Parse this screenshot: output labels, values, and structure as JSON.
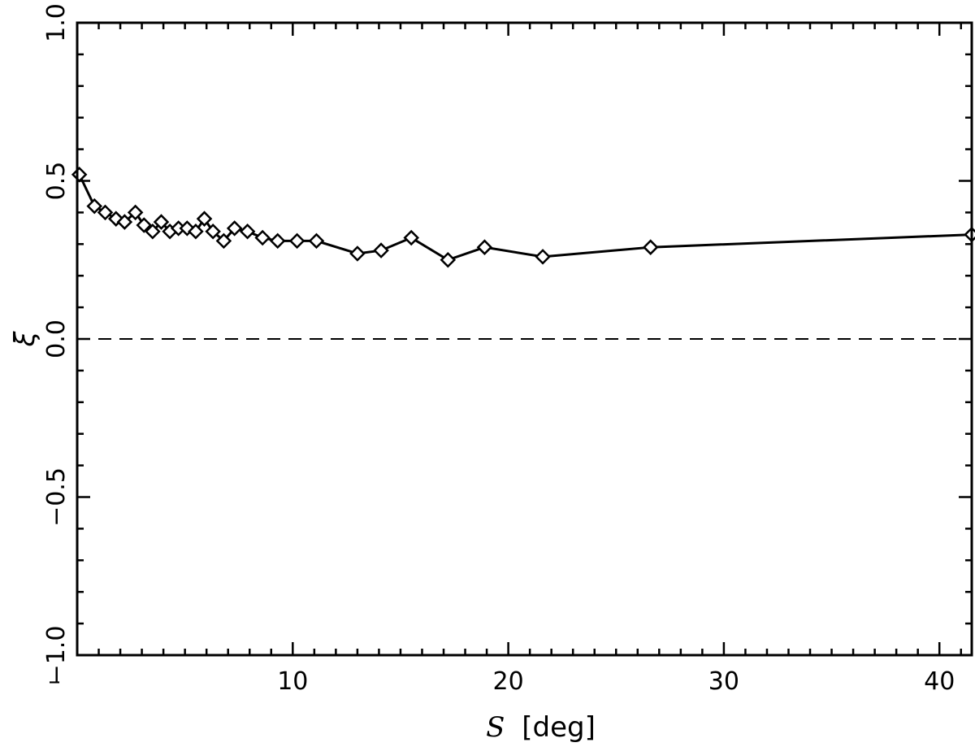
{
  "chart_data": {
    "type": "line",
    "title": "",
    "xlabel_symbol": "S",
    "xlabel_unit": "[deg]",
    "ylabel": "ξ",
    "xlim": [
      0,
      41.5
    ],
    "ylim": [
      -1.0,
      1.0
    ],
    "x_ticks": [
      {
        "value": 0,
        "label": "–"
      },
      {
        "value": 10,
        "label": "10"
      },
      {
        "value": 20,
        "label": "20"
      },
      {
        "value": 30,
        "label": "30"
      },
      {
        "value": 40,
        "label": "40"
      }
    ],
    "y_ticks": [
      {
        "value": -1.0,
        "label": "−1.0"
      },
      {
        "value": -0.5,
        "label": "−0.5"
      },
      {
        "value": 0.0,
        "label": "0.0"
      },
      {
        "value": 0.5,
        "label": "0.5"
      },
      {
        "value": 1.0,
        "label": "1.0"
      }
    ],
    "reference_line": {
      "y": 0.0,
      "style": "dashed"
    },
    "series": [
      {
        "marker": "diamond",
        "points": [
          [
            0.1,
            0.52
          ],
          [
            0.8,
            0.42
          ],
          [
            1.3,
            0.4
          ],
          [
            1.8,
            0.38
          ],
          [
            2.2,
            0.37
          ],
          [
            2.7,
            0.4
          ],
          [
            3.1,
            0.36
          ],
          [
            3.5,
            0.34
          ],
          [
            3.9,
            0.37
          ],
          [
            4.3,
            0.34
          ],
          [
            4.7,
            0.35
          ],
          [
            5.1,
            0.35
          ],
          [
            5.5,
            0.34
          ],
          [
            5.9,
            0.38
          ],
          [
            6.3,
            0.34
          ],
          [
            6.8,
            0.31
          ],
          [
            7.3,
            0.35
          ],
          [
            7.9,
            0.34
          ],
          [
            8.6,
            0.32
          ],
          [
            9.3,
            0.31
          ],
          [
            10.2,
            0.31
          ],
          [
            11.1,
            0.31
          ],
          [
            13.0,
            0.27
          ],
          [
            14.1,
            0.28
          ],
          [
            15.5,
            0.32
          ],
          [
            17.2,
            0.25
          ],
          [
            18.9,
            0.29
          ],
          [
            21.6,
            0.26
          ],
          [
            26.6,
            0.29
          ],
          [
            41.5,
            0.33
          ]
        ]
      }
    ]
  }
}
